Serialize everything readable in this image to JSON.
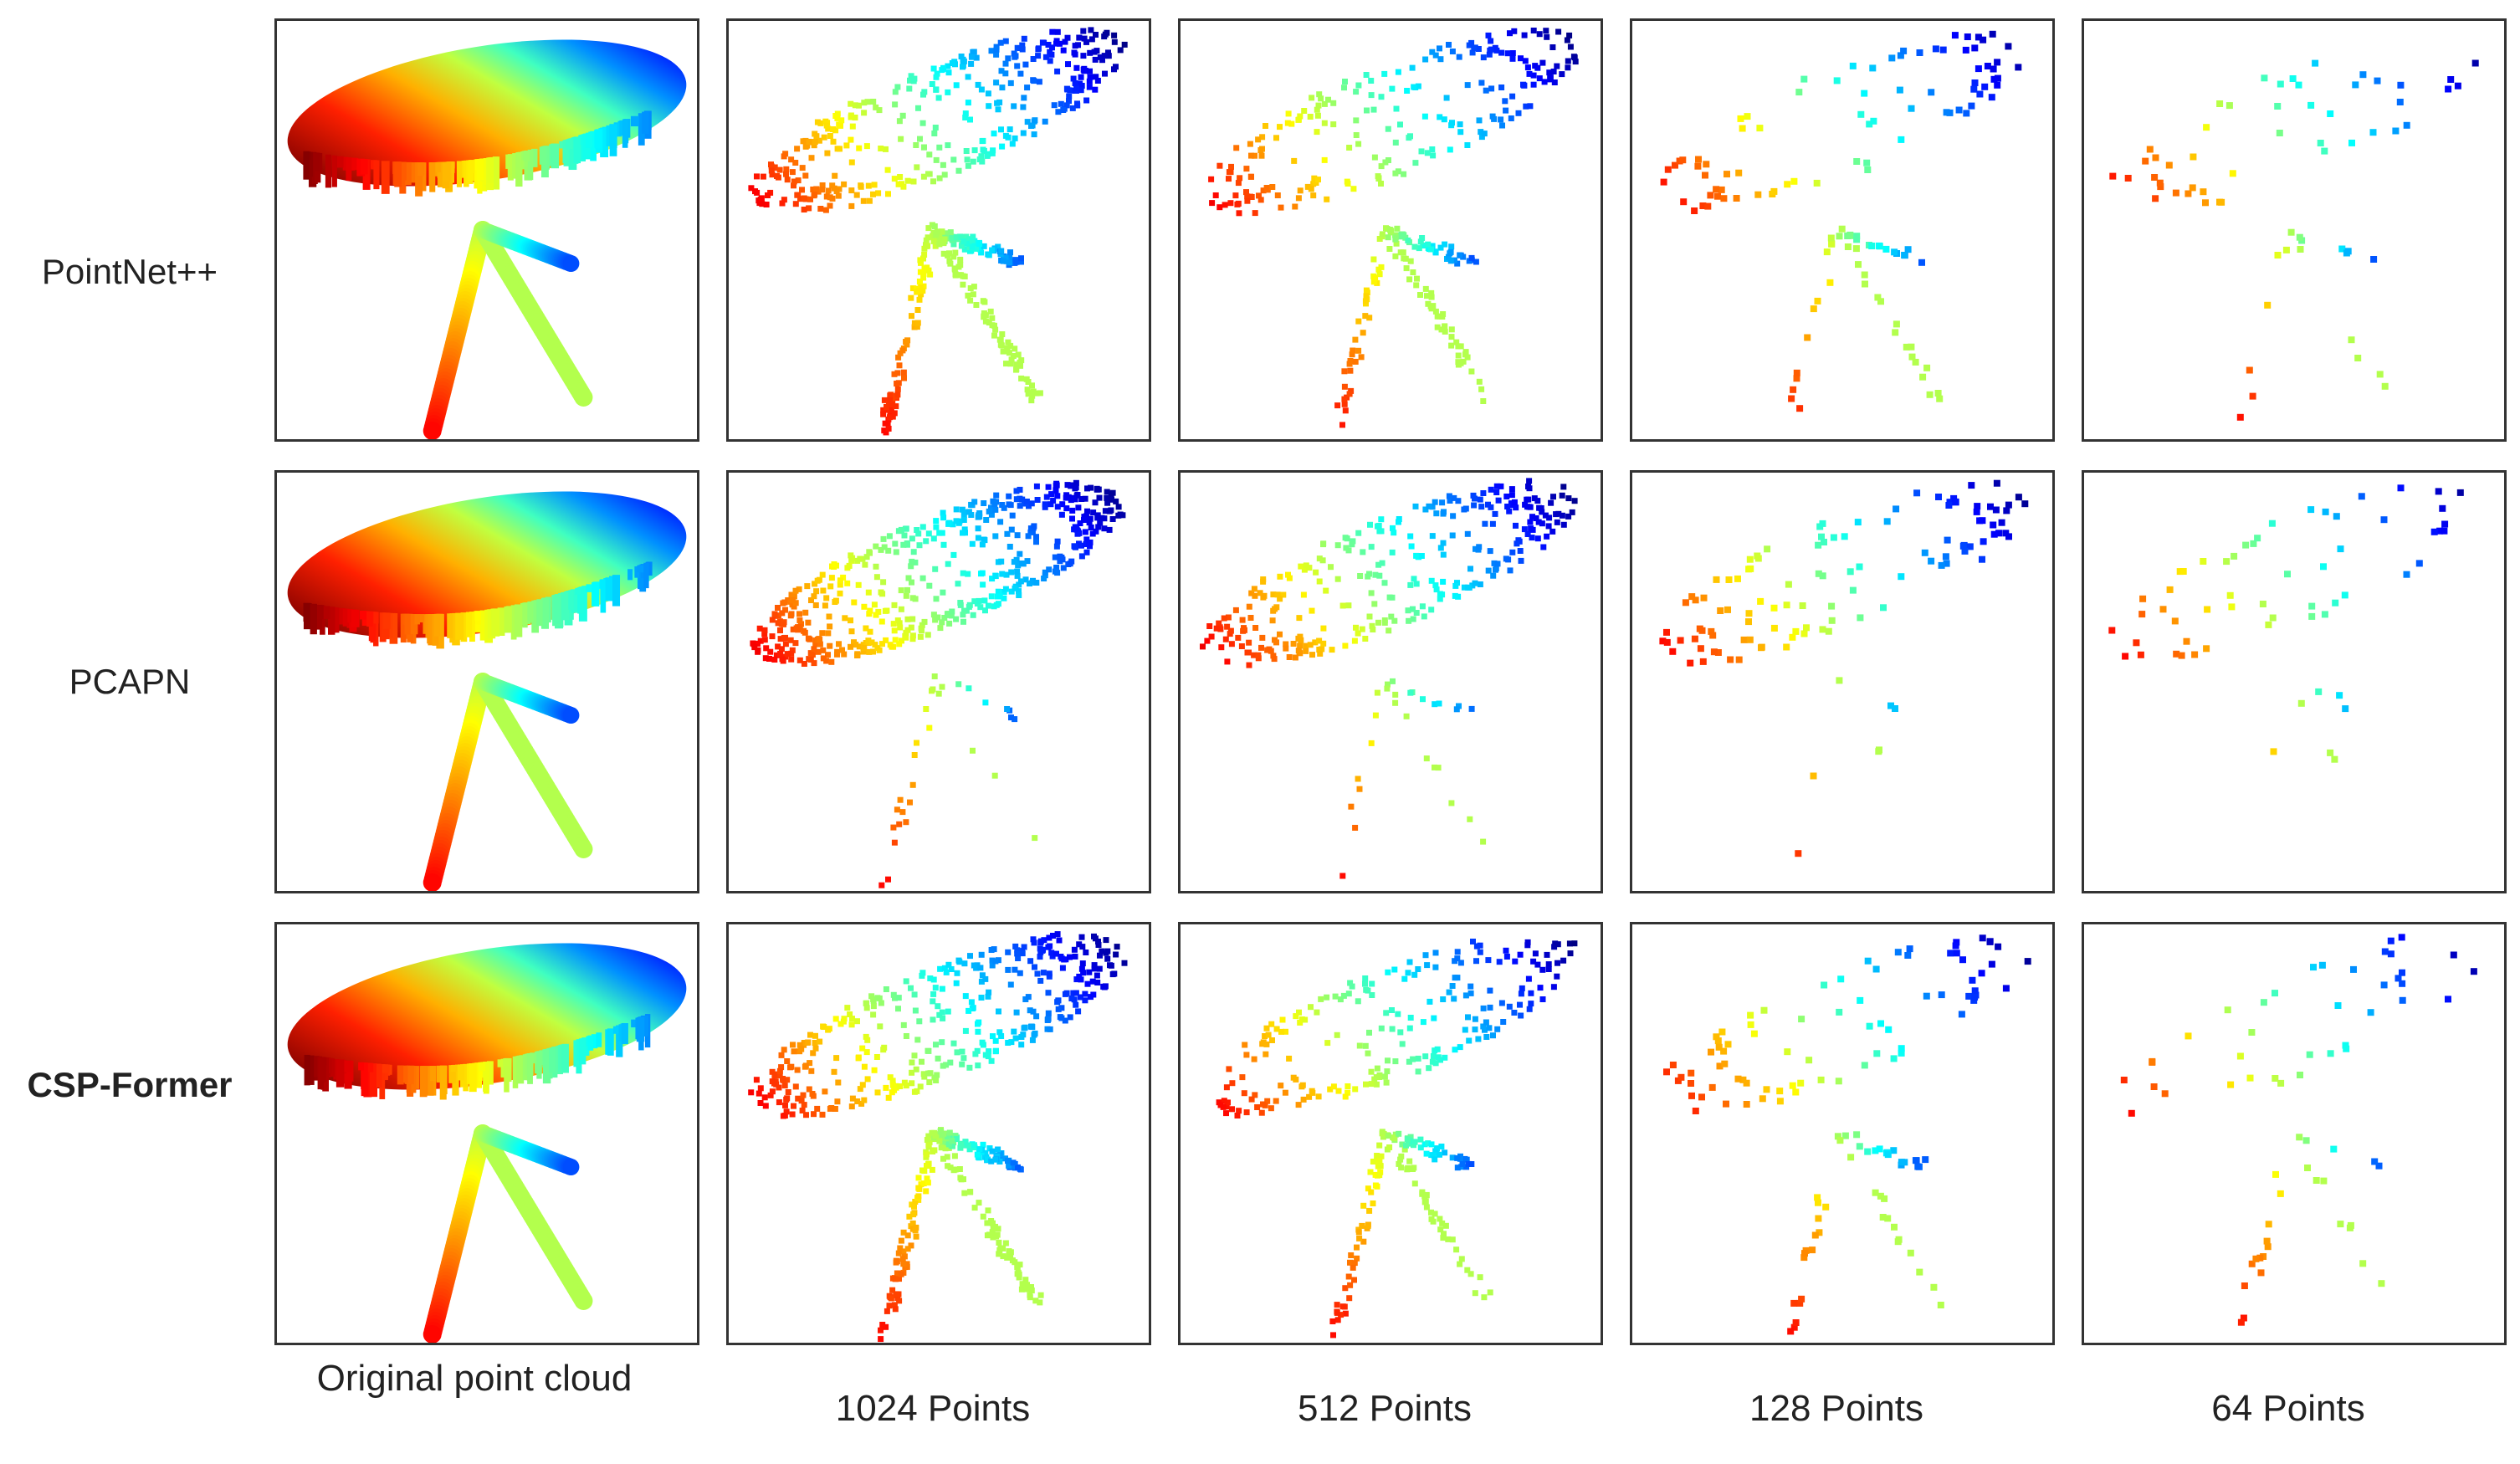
{
  "figure": {
    "rows": [
      {
        "id": "pointnet",
        "label": "PointNet++",
        "bold": false
      },
      {
        "id": "pcapn",
        "label": "PCAPN",
        "bold": false
      },
      {
        "id": "cspformer",
        "label": "CSP-Former",
        "bold": true
      }
    ],
    "columns": [
      {
        "id": "original",
        "label": "Original point cloud",
        "points": null
      },
      {
        "id": "p1024",
        "label": "1024 Points",
        "points": 1024
      },
      {
        "id": "p512",
        "label": "512 Points",
        "points": 512
      },
      {
        "id": "p128",
        "label": "128 Points",
        "points": 128
      },
      {
        "id": "p64",
        "label": "64 Points",
        "points": 64
      }
    ],
    "colormap": [
      "#800000",
      "#ff0000",
      "#ff8000",
      "#ffff00",
      "#80ff80",
      "#00ffff",
      "#0080ff",
      "#0000ff",
      "#000080"
    ],
    "leg_color": "#80ff80"
  }
}
